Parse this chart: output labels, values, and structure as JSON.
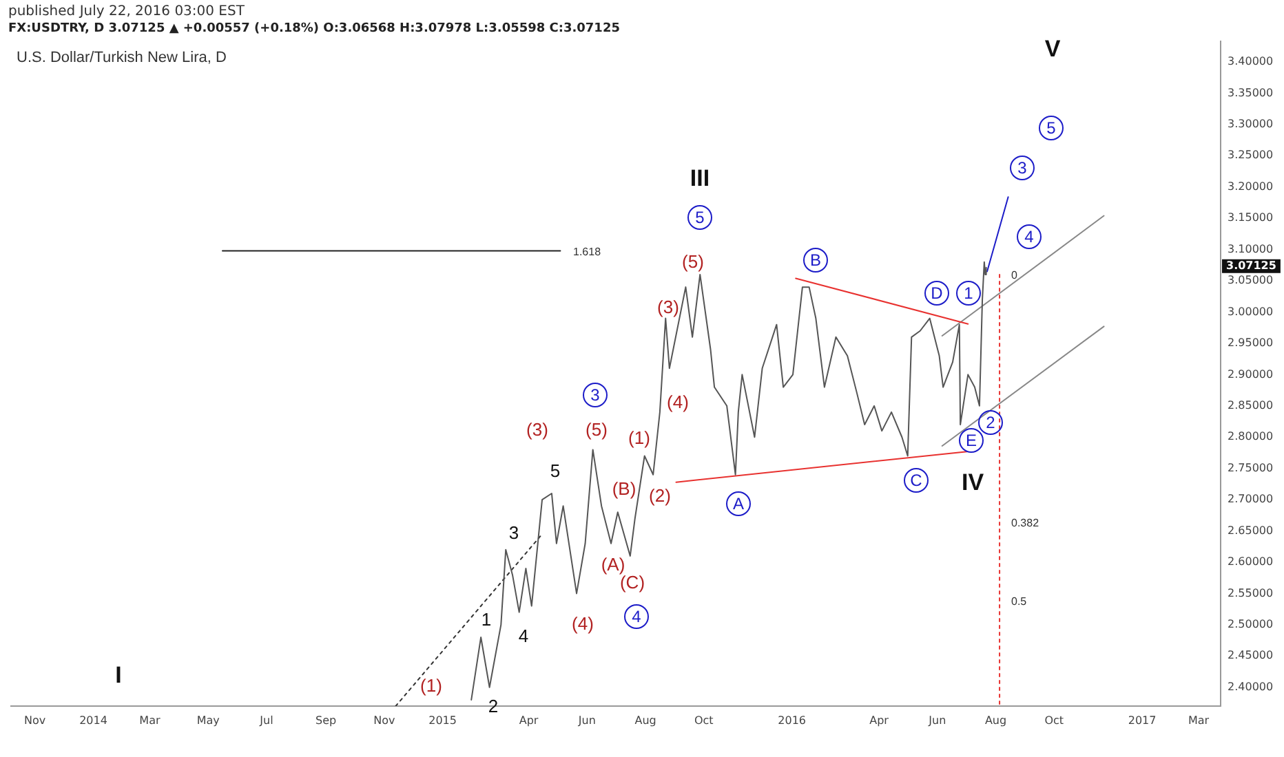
{
  "chart_data": {
    "type": "line",
    "title": "FX:USDTRY, D 3.07125 ▲ +0.00557 (+0.18%) O:3.06568 H:3.07978 L:3.05598 C:3.07125",
    "subtitle": "published July 22, 2016 03:00 EST",
    "annotations": [
      "U.S. Dollar/Turkish New Lira, D",
      "3.07125",
      "1.618",
      "0",
      "0.382",
      "0.5",
      "(1)",
      "(3)",
      "(5)",
      "(4)",
      "(B)",
      "(A)",
      "(C)",
      "(1)",
      "(2)",
      "(4)",
      "(3)",
      "(5)",
      "1",
      "2",
      "3",
      "4",
      "5",
      "I",
      "III",
      "IV",
      "V",
      "3",
      "4",
      "5",
      "A",
      "B",
      "C",
      "D",
      "1",
      "E",
      "2",
      "4",
      "3",
      "5"
    ],
    "xlim": [
      "2013-10-07",
      "2017-03-24"
    ],
    "ylim": [
      2.37,
      3.433
    ],
    "xticks": [
      {
        "value": "2013-11-01",
        "label": "Nov"
      },
      {
        "value": "2014-01-01",
        "label": "2014"
      },
      {
        "value": "2014-03-01",
        "label": "Mar"
      },
      {
        "value": "2014-05-01",
        "label": "May"
      },
      {
        "value": "2014-07-01",
        "label": "Jul"
      },
      {
        "value": "2014-09-01",
        "label": "Sep"
      },
      {
        "value": "2014-11-01",
        "label": "Nov"
      },
      {
        "value": "2015-01-01",
        "label": "2015"
      },
      {
        "value": "2015-04-01",
        "label": "Apr"
      },
      {
        "value": "2015-06-01",
        "label": "Jun"
      },
      {
        "value": "2015-08-01",
        "label": "Aug"
      },
      {
        "value": "2015-10-01",
        "label": "Oct"
      },
      {
        "value": "2016-01-01",
        "label": "2016"
      },
      {
        "value": "2016-04-01",
        "label": "Apr"
      },
      {
        "value": "2016-06-01",
        "label": "Jun"
      },
      {
        "value": "2016-08-01",
        "label": "Aug"
      },
      {
        "value": "2016-10-01",
        "label": "Oct"
      },
      {
        "value": "2017-01-01",
        "label": "2017"
      },
      {
        "value": "2017-03-01",
        "label": "Mar"
      }
    ],
    "yticks": [
      {
        "value": 2.4,
        "label": "2.40000"
      },
      {
        "value": 2.45,
        "label": "2.45000"
      },
      {
        "value": 2.5,
        "label": "2.50000"
      },
      {
        "value": 2.55,
        "label": "2.55000"
      },
      {
        "value": 2.6,
        "label": "2.60000"
      },
      {
        "value": 2.65,
        "label": "2.65000"
      },
      {
        "value": 2.7,
        "label": "2.70000"
      },
      {
        "value": 2.75,
        "label": "2.75000"
      },
      {
        "value": 2.8,
        "label": "2.80000"
      },
      {
        "value": 2.85,
        "label": "2.85000"
      },
      {
        "value": 2.9,
        "label": "2.90000"
      },
      {
        "value": 2.95,
        "label": "2.95000"
      },
      {
        "value": 3.0,
        "label": "3.00000"
      },
      {
        "value": 3.05,
        "label": "3.05000"
      },
      {
        "value": 3.1,
        "label": "3.10000"
      },
      {
        "value": 3.15,
        "label": "3.15000"
      },
      {
        "value": 3.2,
        "label": "3.20000"
      },
      {
        "value": 3.25,
        "label": "3.25000"
      },
      {
        "value": 3.3,
        "label": "3.30000"
      },
      {
        "value": 3.35,
        "label": "3.35000"
      },
      {
        "value": 3.4,
        "label": "3.40000"
      }
    ],
    "grid": false,
    "legend": false,
    "series": [
      {
        "type": "line",
        "color": "#555555",
        "marker": "none",
        "x": [
          "2015-01-31",
          "2015-02-10",
          "2015-02-19",
          "2015-03-03",
          "2015-03-08",
          "2015-03-15",
          "2015-03-22",
          "2015-03-29",
          "2015-04-04",
          "2015-04-15",
          "2015-04-25",
          "2015-04-30",
          "2015-05-07",
          "2015-05-21",
          "2015-05-30",
          "2015-06-07",
          "2015-06-16",
          "2015-06-26",
          "2015-07-03",
          "2015-07-16",
          "2015-07-21",
          "2015-07-31",
          "2015-08-09",
          "2015-08-16",
          "2015-08-22",
          "2015-08-26",
          "2015-09-12",
          "2015-09-19",
          "2015-09-27",
          "2015-10-08",
          "2015-10-12",
          "2015-10-25",
          "2015-11-03",
          "2015-11-06",
          "2015-11-10",
          "2015-11-23",
          "2015-12-01",
          "2015-12-16",
          "2015-12-23",
          "2016-01-02",
          "2016-01-12",
          "2016-01-19",
          "2016-01-26",
          "2016-02-04",
          "2016-02-16",
          "2016-02-28",
          "2016-03-09",
          "2016-03-17",
          "2016-03-27",
          "2016-04-04",
          "2016-04-14",
          "2016-04-25",
          "2016-05-01",
          "2016-05-05",
          "2016-05-14",
          "2016-05-24",
          "2016-06-03",
          "2016-06-07",
          "2016-06-17",
          "2016-06-24",
          "2016-06-25",
          "2016-07-03",
          "2016-07-10",
          "2016-07-15",
          "2016-07-18",
          "2016-07-20",
          "2016-07-21",
          "2016-07-22"
        ],
        "values": [
          2.38,
          2.48,
          2.4,
          2.5,
          2.62,
          2.58,
          2.52,
          2.59,
          2.53,
          2.7,
          2.71,
          2.63,
          2.69,
          2.55,
          2.63,
          2.78,
          2.69,
          2.63,
          2.68,
          2.61,
          2.67,
          2.77,
          2.74,
          2.84,
          2.99,
          2.91,
          3.04,
          2.96,
          3.06,
          2.94,
          2.88,
          2.85,
          2.74,
          2.84,
          2.9,
          2.8,
          2.91,
          2.98,
          2.88,
          2.9,
          3.04,
          3.04,
          2.99,
          2.88,
          2.96,
          2.93,
          2.87,
          2.82,
          2.85,
          2.81,
          2.84,
          2.8,
          2.77,
          2.96,
          2.97,
          2.99,
          2.93,
          2.88,
          2.92,
          2.98,
          2.82,
          2.9,
          2.88,
          2.85,
          3.02,
          3.08,
          3.06,
          3.07125
        ]
      },
      {
        "type": "line",
        "color": "#e8312f",
        "marker": "none",
        "x": [
          "2016-01-05",
          "2016-07-03"
        ],
        "values": [
          3.054,
          2.981
        ]
      },
      {
        "type": "line",
        "color": "#e8312f",
        "marker": "none",
        "x": [
          "2015-09-02",
          "2016-07-02"
        ],
        "values": [
          2.728,
          2.777
        ]
      },
      {
        "type": "line",
        "color": "#888888",
        "marker": "none",
        "x": [
          "2016-06-06",
          "2016-11-22"
        ],
        "values": [
          2.962,
          3.154
        ]
      },
      {
        "type": "line",
        "color": "#888888",
        "marker": "none",
        "x": [
          "2016-06-06",
          "2016-11-22"
        ],
        "values": [
          2.786,
          2.977
        ]
      },
      {
        "type": "line",
        "color": "#333333",
        "marker": "none",
        "line_style": "dotted",
        "x": [
          "2014-11-13",
          "2015-04-15"
        ],
        "values": [
          2.37,
          2.645
        ]
      },
      {
        "type": "line",
        "color": "#222222",
        "marker": "none",
        "x": [
          "2014-05-16",
          "2015-05-04"
        ],
        "values": [
          3.098,
          3.098
        ]
      },
      {
        "type": "line",
        "color": "#e8312f",
        "marker": "none",
        "line_style": "dotted",
        "x": [
          "2016-08-05",
          "2016-08-05",
          "2016-08-05",
          "2016-08-05"
        ],
        "values": [
          3.06,
          2.662,
          2.537,
          2.37
        ]
      },
      {
        "type": "line",
        "color": "#1c1cc8",
        "marker": "none",
        "x": [
          "2016-07-23",
          "2016-08-14"
        ],
        "values": [
          3.065,
          3.184
        ]
      }
    ]
  }
}
